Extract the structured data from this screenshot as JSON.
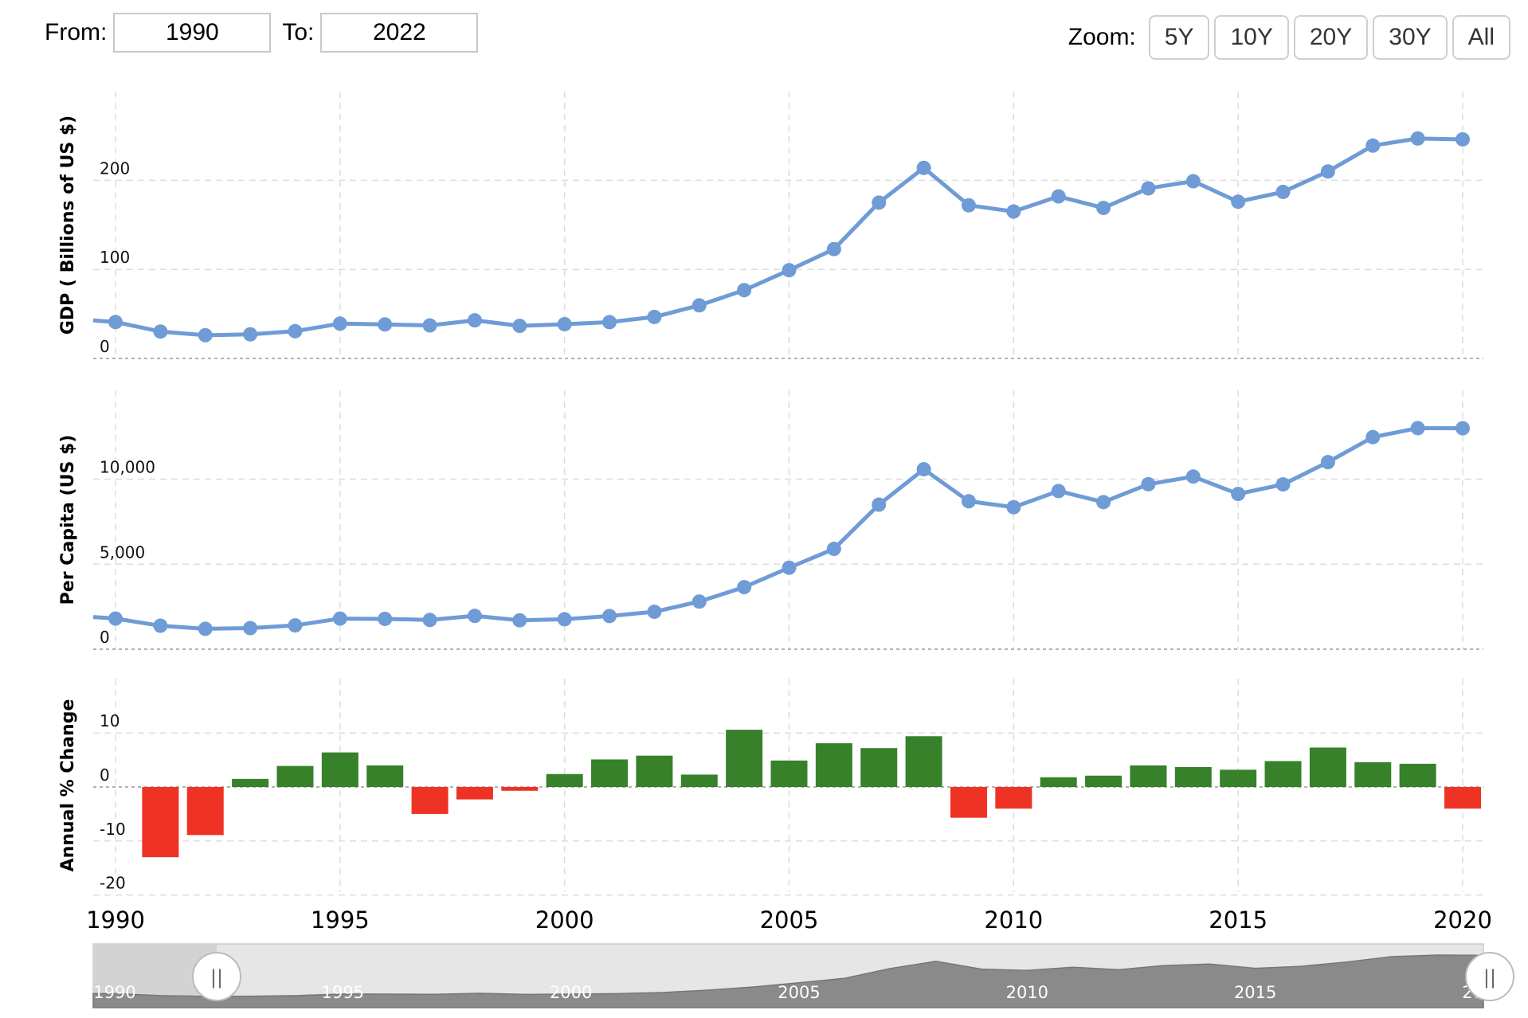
{
  "range_selector": {
    "from_label": "From:",
    "from_value": "1990",
    "to_label": "To:",
    "to_value": "2022"
  },
  "zoom": {
    "label": "Zoom:",
    "buttons": [
      "5Y",
      "10Y",
      "20Y",
      "30Y",
      "All"
    ]
  },
  "colors": {
    "line": "#6f9bd6",
    "positive": "#37812a",
    "negative": "#ee3224",
    "navigator_area": "#8a8a8a",
    "navigator_bg": "#e6e6e6"
  },
  "chart_data": [
    {
      "type": "line",
      "ylabel": "GDP ( Billions of US $)",
      "yticks": [
        "0",
        "100",
        "200"
      ],
      "ylim": [
        0,
        300
      ],
      "x": [
        1990,
        1991,
        1992,
        1993,
        1994,
        1995,
        1996,
        1997,
        1998,
        1999,
        2000,
        2001,
        2002,
        2003,
        2004,
        2005,
        2006,
        2007,
        2008,
        2009,
        2010,
        2011,
        2012,
        2013,
        2014,
        2015,
        2016,
        2017,
        2018,
        2019,
        2020
      ],
      "values": [
        40.9,
        30.2,
        26.1,
        27.1,
        30.6,
        39.1,
        38.2,
        37.1,
        42.8,
        36.6,
        38.5,
        40.8,
        46.6,
        59.6,
        76.7,
        99.1,
        122.8,
        175.0,
        214.0,
        172.0,
        165.0,
        182.0,
        169.0,
        191.0,
        199.0,
        176.0,
        187.0,
        210.0,
        239.0,
        247.0,
        246.0
      ],
      "grid": true
    },
    {
      "type": "line",
      "ylabel": "Per Capita (US $)",
      "yticks": [
        "0",
        "5,000",
        "10,000"
      ],
      "ylim": [
        0,
        15000
      ],
      "x": [
        1990,
        1991,
        1992,
        1993,
        1994,
        1995,
        1996,
        1997,
        1998,
        1999,
        2000,
        2001,
        2002,
        2003,
        2004,
        2005,
        2006,
        2007,
        2008,
        2009,
        2010,
        2011,
        2012,
        2013,
        2014,
        2015,
        2016,
        2017,
        2018,
        2019,
        2020
      ],
      "values": [
        1800,
        1380,
        1200,
        1240,
        1400,
        1800,
        1780,
        1720,
        1960,
        1700,
        1760,
        1950,
        2200,
        2800,
        3650,
        4790,
        5900,
        8500,
        10580,
        8700,
        8350,
        9300,
        8650,
        9700,
        10150,
        9130,
        9690,
        11000,
        12470,
        13000,
        12990
      ],
      "grid": true
    },
    {
      "type": "bar",
      "ylabel": "Annual % Change",
      "yticks": [
        "-20",
        "-10",
        "0",
        "10"
      ],
      "ylim": [
        -20,
        15
      ],
      "x": [
        1991,
        1992,
        1993,
        1994,
        1995,
        1996,
        1997,
        1998,
        1999,
        2000,
        2001,
        2002,
        2003,
        2004,
        2005,
        2006,
        2007,
        2008,
        2009,
        2010,
        2011,
        2012,
        2013,
        2014,
        2015,
        2016,
        2017,
        2018,
        2019,
        2020
      ],
      "values": [
        -13.0,
        -8.9,
        1.5,
        3.9,
        6.4,
        4.0,
        -5.0,
        -2.3,
        -0.7,
        2.4,
        5.1,
        5.8,
        2.3,
        10.6,
        4.9,
        8.1,
        7.2,
        9.4,
        -5.7,
        -4.0,
        1.8,
        2.1,
        4.0,
        3.7,
        3.2,
        4.8,
        7.3,
        4.6,
        4.3,
        -4.0
      ],
      "grid": true
    }
  ],
  "x_axis": {
    "ticks": [
      "1990",
      "1995",
      "2000",
      "2005",
      "2010",
      "2015",
      "2020"
    ],
    "tick_years": [
      1990,
      1995,
      2000,
      2005,
      2010,
      2015,
      2020
    ]
  },
  "navigator": {
    "ticks": [
      "1990",
      "1995",
      "2000",
      "2005",
      "2010",
      "2015",
      "2020"
    ],
    "tick_years": [
      1990,
      1995,
      2000,
      2005,
      2010,
      2015,
      2020
    ],
    "handle_glyph": "||"
  }
}
